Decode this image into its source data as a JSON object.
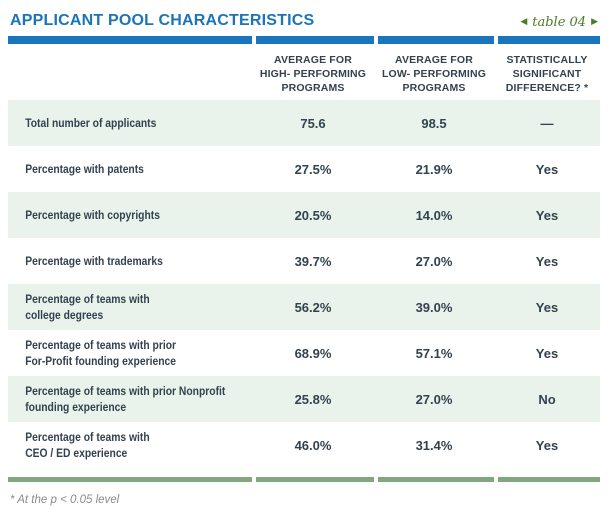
{
  "header": {
    "title": "APPLICANT POOL CHARACTERISTICS",
    "nav": {
      "prev_icon": "◀",
      "label": "table 04",
      "next_icon": "▶"
    }
  },
  "table": {
    "col_headers": {
      "high": "AVERAGE FOR\nHIGH- PERFORMING\nPROGRAMS",
      "low": "AVERAGE FOR\nLOW- PERFORMING\nPROGRAMS",
      "sig": "STATISTICALLY\nSIGNIFICANT\nDIFFERENCE? *"
    },
    "rows": [
      {
        "label": "Total number of applicants",
        "high": "75.6",
        "low": "98.5",
        "sig": "—"
      },
      {
        "label": "Percentage with patents",
        "high": "27.5%",
        "low": "21.9%",
        "sig": "Yes"
      },
      {
        "label": "Percentage with copyrights",
        "high": "20.5%",
        "low": "14.0%",
        "sig": "Yes"
      },
      {
        "label": "Percentage with trademarks",
        "high": "39.7%",
        "low": "27.0%",
        "sig": "Yes"
      },
      {
        "label": "Percentage of teams with\ncollege degrees",
        "high": "56.2%",
        "low": "39.0%",
        "sig": "Yes"
      },
      {
        "label": "Percentage of teams with prior\nFor-Profit founding experience",
        "high": "68.9%",
        "low": "57.1%",
        "sig": "Yes"
      },
      {
        "label": "Percentage of teams with prior Nonprofit\nfounding experience",
        "high": "25.8%",
        "low": "27.0%",
        "sig": "No"
      },
      {
        "label": "Percentage of teams with\nCEO / ED experience",
        "high": "46.0%",
        "low": "31.4%",
        "sig": "Yes"
      }
    ]
  },
  "footnote": "* At the p < 0.05 level",
  "colors": {
    "accent_blue": "#1a76bc",
    "nav_green": "#4d7b24",
    "bottom_rule_green": "#81a87d",
    "text_navy": "#33424f",
    "row_shade": "#e9f2eb",
    "footnote_gray": "#8b8b8b"
  }
}
